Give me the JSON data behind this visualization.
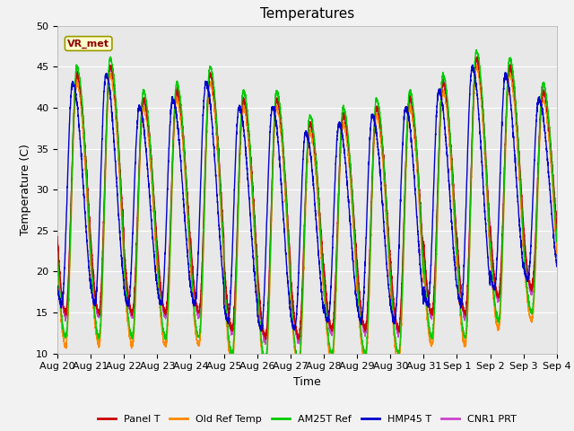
{
  "title": "Temperatures",
  "xlabel": "Time",
  "ylabel": "Temperature (C)",
  "ylim": [
    10,
    50
  ],
  "xtick_labels": [
    "Aug 20",
    "Aug 21",
    "Aug 22",
    "Aug 23",
    "Aug 24",
    "Aug 25",
    "Aug 26",
    "Aug 27",
    "Aug 28",
    "Aug 29",
    "Aug 30",
    "Aug 31",
    "Sep 1",
    "Sep 2",
    "Sep 3",
    "Sep 4"
  ],
  "annotation_text": "VR_met",
  "series": [
    {
      "name": "Panel T",
      "color": "#cc0000",
      "lw": 1.0,
      "zorder": 5
    },
    {
      "name": "Old Ref Temp",
      "color": "#ff8800",
      "lw": 1.0,
      "zorder": 4
    },
    {
      "name": "AM25T Ref",
      "color": "#00cc00",
      "lw": 1.0,
      "zorder": 6
    },
    {
      "name": "HMP45 T",
      "color": "#0000cc",
      "lw": 1.0,
      "zorder": 7
    },
    {
      "name": "CNR1 PRT",
      "color": "#cc44cc",
      "lw": 1.0,
      "zorder": 3
    }
  ],
  "n_days": 15,
  "pts_per_day": 288,
  "background_color": "#e8e8e8",
  "fig_background": "#f2f2f2",
  "grid_color": "#ffffff",
  "title_fontsize": 11,
  "label_fontsize": 9,
  "tick_fontsize": 8,
  "yticks": [
    10,
    15,
    20,
    25,
    30,
    35,
    40,
    45,
    50
  ]
}
